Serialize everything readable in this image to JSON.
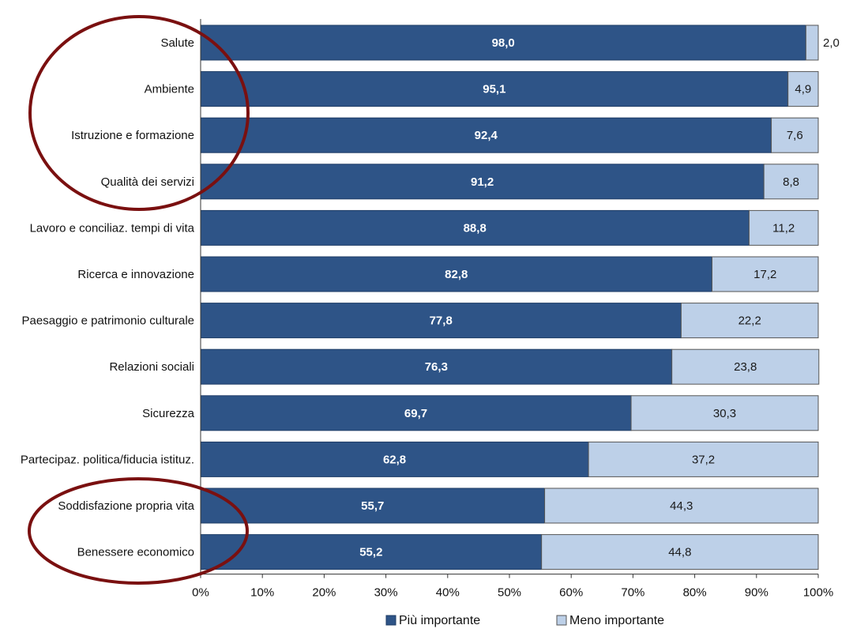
{
  "chart_data": {
    "type": "bar",
    "orientation": "horizontal",
    "stacked": true,
    "categories": [
      "Salute",
      "Ambiente",
      "Istruzione e formazione",
      "Qualità dei servizi",
      "Lavoro e conciliaz. tempi di vita",
      "Ricerca e innovazione",
      "Paesaggio e patrimonio culturale",
      "Relazioni sociali",
      "Sicurezza",
      "Partecipaz. politica/fiducia istituz.",
      "Soddisfazione propria vita",
      "Benessere economico"
    ],
    "series": [
      {
        "name": "Più importante",
        "color": "#2e5487",
        "values": [
          98.0,
          95.1,
          92.4,
          91.2,
          88.8,
          82.8,
          77.8,
          76.3,
          69.7,
          62.8,
          55.7,
          55.2
        ],
        "labels": [
          "98,0",
          "95,1",
          "92,4",
          "91,2",
          "88,8",
          "82,8",
          "77,8",
          "76,3",
          "69,7",
          "62,8",
          "55,7",
          "55,2"
        ]
      },
      {
        "name": "Meno importante",
        "color": "#bdd0e8",
        "values": [
          2.0,
          4.9,
          7.6,
          8.8,
          11.2,
          17.2,
          22.2,
          23.8,
          30.3,
          37.2,
          44.3,
          44.8
        ],
        "labels": [
          "2,0",
          "4,9",
          "7,6",
          "8,8",
          "11,2",
          "17,2",
          "22,2",
          "23,8",
          "30,3",
          "37,2",
          "44,3",
          "44,8"
        ]
      }
    ],
    "xlim": [
      0,
      100
    ],
    "x_ticks": [
      "0%",
      "10%",
      "20%",
      "30%",
      "40%",
      "50%",
      "60%",
      "70%",
      "80%",
      "90%",
      "100%"
    ],
    "legend_position": "bottom",
    "grid": false,
    "annotations": [
      {
        "shape": "ellipse",
        "color": "#7a1010",
        "encloses": [
          "Salute",
          "Ambiente",
          "Istruzione e formazione",
          "Qualità dei servizi"
        ]
      },
      {
        "shape": "ellipse",
        "color": "#7a1010",
        "encloses": [
          "Soddisfazione propria vita",
          "Benessere economico"
        ]
      }
    ]
  }
}
